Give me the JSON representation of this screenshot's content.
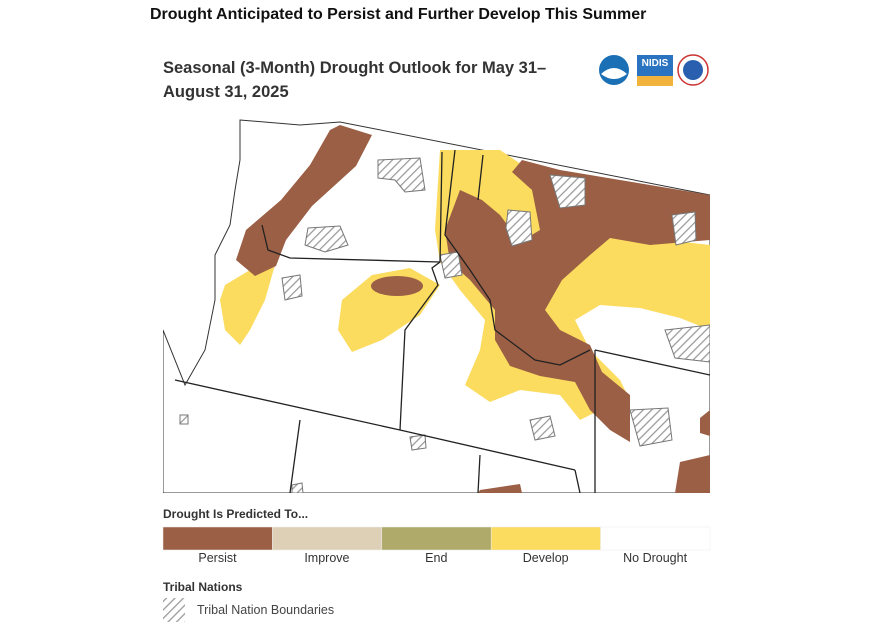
{
  "header": {
    "title": "Drought Anticipated to Persist and Further Develop This Summer"
  },
  "map": {
    "title": "Seasonal (3-Month) Drought Outlook for May 31–August 31, 2025",
    "logo_text": "NIDIS"
  },
  "legend": {
    "title": "Drought Is Predicted To...",
    "items": [
      {
        "label": "Persist",
        "color": "#9b5f45"
      },
      {
        "label": "Improve",
        "color": "#ded0b7"
      },
      {
        "label": "End",
        "color": "#afa96a"
      },
      {
        "label": "Develop",
        "color": "#fbdc5f"
      },
      {
        "label": "No Drought",
        "color": "#ffffff"
      }
    ]
  },
  "tribal": {
    "title": "Tribal Nations",
    "label": "Tribal Nation Boundaries"
  }
}
